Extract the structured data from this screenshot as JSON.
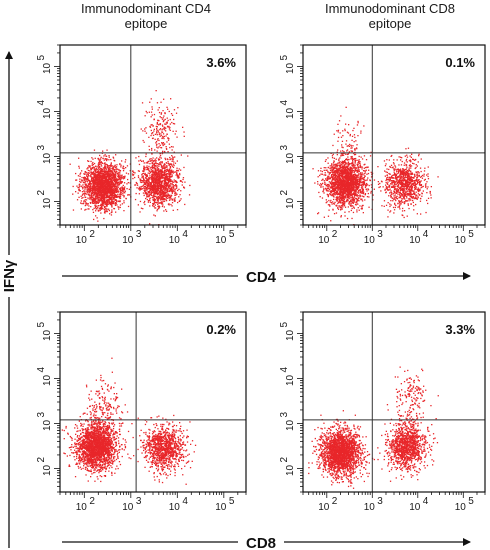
{
  "column_titles": [
    {
      "line1": "Immunodominant CD4",
      "line2": "epitope"
    },
    {
      "line1": "Immunodominant CD8",
      "line2": "epitope"
    }
  ],
  "y_axis_label": "IFNγ",
  "row_axis_labels": [
    "CD4",
    "CD8"
  ],
  "tick_labels": [
    "10",
    "2",
    "10",
    "3",
    "10",
    "4",
    "10",
    "5"
  ],
  "colors": {
    "dots": "#e8262a",
    "frame": "#111111",
    "quadrant_line": "#333333"
  },
  "chart_data": [
    {
      "type": "scatter",
      "panel": "row1-col1",
      "xlabel": "CD4",
      "ylabel": "IFNγ",
      "scale": "log",
      "xlim": [
        30,
        300000
      ],
      "ylim": [
        30,
        300000
      ],
      "quadrant_gate": {
        "x": 1000,
        "y": 1200
      },
      "annotations": [
        "3.6%"
      ],
      "clusters": [
        {
          "x": 250,
          "y": 230,
          "n": 2000
        },
        {
          "x": 4000,
          "y": 270,
          "n": 1300
        },
        {
          "x": 4300,
          "y": 4200,
          "n": 200
        }
      ]
    },
    {
      "type": "scatter",
      "panel": "row1-col2",
      "xlabel": "CD4",
      "ylabel": "IFNγ",
      "scale": "log",
      "xlim": [
        30,
        300000
      ],
      "ylim": [
        30,
        300000
      ],
      "quadrant_gate": {
        "x": 1000,
        "y": 1200
      },
      "annotations": [
        "0.1%"
      ],
      "clusters": [
        {
          "x": 250,
          "y": 270,
          "n": 1900
        },
        {
          "x": 5000,
          "y": 260,
          "n": 900
        },
        {
          "x": 300,
          "y": 2000,
          "n": 80
        }
      ]
    },
    {
      "type": "scatter",
      "panel": "row2-col1",
      "xlabel": "CD8",
      "ylabel": "IFNγ",
      "scale": "log",
      "xlim": [
        30,
        300000
      ],
      "ylim": [
        30,
        300000
      ],
      "quadrant_gate": {
        "x": 1300,
        "y": 1200
      },
      "annotations": [
        "0.2%"
      ],
      "clusters": [
        {
          "x": 180,
          "y": 320,
          "n": 2100
        },
        {
          "x": 5000,
          "y": 300,
          "n": 1000
        },
        {
          "x": 250,
          "y": 2500,
          "n": 180
        }
      ]
    },
    {
      "type": "scatter",
      "panel": "row2-col2",
      "xlabel": "CD8",
      "ylabel": "IFNγ",
      "scale": "log",
      "xlim": [
        30,
        300000
      ],
      "ylim": [
        30,
        300000
      ],
      "quadrant_gate": {
        "x": 1000,
        "y": 1200
      },
      "annotations": [
        "3.3%"
      ],
      "clusters": [
        {
          "x": 200,
          "y": 230,
          "n": 2000
        },
        {
          "x": 5500,
          "y": 330,
          "n": 1100
        },
        {
          "x": 7000,
          "y": 4000,
          "n": 160
        }
      ]
    }
  ]
}
